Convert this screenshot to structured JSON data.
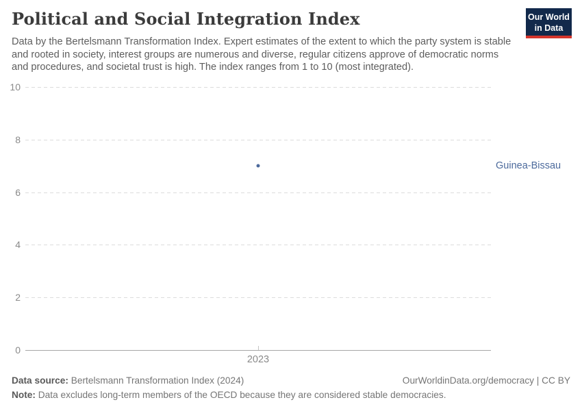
{
  "header": {
    "title": "Political and Social Integration Index",
    "subtitle": "Data by the Bertelsmann Transformation Index. Expert estimates of the extent to which the party system is stable and rooted in society, interest groups are numerous and diverse, regular citizens approve of democratic norms and procedures, and societal trust is high. The index ranges from 1 to 10 (most integrated).",
    "logo": {
      "line1": "Our World",
      "line2": "in Data",
      "background_color": "#12294b",
      "accent_color": "#d5352c"
    }
  },
  "chart_data": {
    "type": "scatter",
    "title": "Political and Social Integration Index",
    "x": [
      2023
    ],
    "x_tick_labels": [
      "2023"
    ],
    "series": [
      {
        "name": "Guinea-Bissau",
        "x": [
          2023
        ],
        "values": [
          7
        ],
        "color": "#4c6a9c",
        "label_color": "#4c6a9c"
      }
    ],
    "y_ticks": [
      0,
      2,
      4,
      6,
      8,
      10
    ],
    "ylim": [
      0,
      10
    ],
    "grid": true,
    "gridline_style": "dashed",
    "legend_position": "right-of-point"
  },
  "footer": {
    "source_label": "Data source:",
    "source_text": "Bertelsmann Transformation Index (2024)",
    "rights": "OurWorldinData.org/democracy | CC BY",
    "note_label": "Note:",
    "note_text": "Data excludes long-term members of the OECD because they are considered stable democracies."
  }
}
